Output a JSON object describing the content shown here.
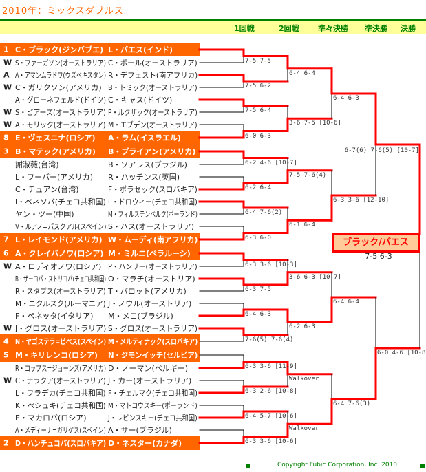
{
  "title": "2010年：ミックスダブルス",
  "rounds": [
    "1回戦",
    "2回戦",
    "準々決勝",
    "準決勝",
    "決勝"
  ],
  "colors": {
    "seed_band": "#FF6600",
    "winner_line": "#FF0000",
    "header_bar": "#FFFF99",
    "accent_green": "#008000",
    "champion_fill": "#FFCC99"
  },
  "entries": [
    {
      "mark": "1",
      "player1": "C・ブラック(ジンバブエ)",
      "player2": "L・パエス(インド)",
      "seeded": true
    },
    {
      "mark": "W",
      "player1": "S・ファーガソン(オーストラリア)",
      "player2": "C・ボール(オーストラリア)",
      "seeded": false
    },
    {
      "mark": "A",
      "player1": "A・アマンムラドワ(ウズベキスタン)",
      "player2": "R・デフェスト(南アフリカ)",
      "seeded": false
    },
    {
      "mark": "W",
      "player1": "C・ガリクソン(アメリカ)",
      "player2": "B・トミック(オーストラリア)",
      "seeded": false
    },
    {
      "mark": "",
      "player1": "A・グローネフェルド(ドイツ)",
      "player2": "C・キャス(ドイツ)",
      "seeded": false
    },
    {
      "mark": "W",
      "player1": "S・ピアーズ(オーストラリア)",
      "player2": "P・ルクザック(オーストラリア)",
      "seeded": false
    },
    {
      "mark": "W",
      "player1": "A・モリック(オーストラリア)",
      "player2": "M・エブデン(オーストラリア)",
      "seeded": false
    },
    {
      "mark": "8",
      "player1": "E・ヴェスニナ(ロシア)",
      "player2": "A・ラム(イスラエル)",
      "seeded": true
    },
    {
      "mark": "3",
      "player1": "B・マテック(アメリカ)",
      "player2": "B・ブライアン(アメリカ)",
      "seeded": true
    },
    {
      "mark": "",
      "player1": "謝淑薇(台湾)",
      "player2": "B・ソアレス(ブラジル)",
      "seeded": false
    },
    {
      "mark": "",
      "player1": "L・フーバー(アメリカ)",
      "player2": "R・ハッチンス(英国)",
      "seeded": false
    },
    {
      "mark": "",
      "player1": "C・チュアン(台湾)",
      "player2": "F・ポラセック(スロバキア)",
      "seeded": false
    },
    {
      "mark": "",
      "player1": "I・ベネソバ(チェコ共和国)",
      "player2": "L・ドロウィー(チェコ共和国)",
      "seeded": false
    },
    {
      "mark": "",
      "player1": "ヤン・ツー(中国)",
      "player2": "M・フィルステンベルク(ポーランド)",
      "seeded": false
    },
    {
      "mark": "",
      "player1": "V・ルアノ=パスクアル(スペイン)",
      "player2": "S・ハス(オーストラリア)",
      "seeded": false
    },
    {
      "mark": "7",
      "player1": "L・レイモンド(アメリカ)",
      "player2": "W・ムーディ(南アフリカ)",
      "seeded": true
    },
    {
      "mark": "6",
      "player1": "A・クレイバノワ(ロシア)",
      "player2": "M・ミルニ(ベラルーシ)",
      "seeded": true
    },
    {
      "mark": "W",
      "player1": "A・ロディオノワ(ロシア)",
      "player2": "P・ハンリー(オーストラリア)",
      "seeded": false
    },
    {
      "mark": "",
      "player1": "B・ザーロバ・ストリコバ(チェコ共和国)",
      "player2": "O・マラチ(オーストリア)",
      "seeded": false
    },
    {
      "mark": "",
      "player1": "R・スタブス(オーストラリア)",
      "player2": "T・パロット(アメリカ)",
      "seeded": false
    },
    {
      "mark": "",
      "player1": "M・ニクルスク(ルーマニア)",
      "player2": "J・ノウル(オーストリア)",
      "seeded": false
    },
    {
      "mark": "",
      "player1": "F・ペネッタ(イタリア)",
      "player2": "M・メロ(ブラジル)",
      "seeded": false
    },
    {
      "mark": "W",
      "player1": "J・グロス(オーストラリア)",
      "player2": "S・グロス(オーストラリア)",
      "seeded": false
    },
    {
      "mark": "4",
      "player1": "N・ヤゴステラ=ビベス(スペイン)",
      "player2": "M・メルティナック(スロバキア)",
      "seeded": true
    },
    {
      "mark": "5",
      "player1": "M・キリレンコ(ロシア)",
      "player2": "N・ジモンイッチ(セルビア)",
      "seeded": true
    },
    {
      "mark": "",
      "player1": "R・コップス=ジョーンズ(アメリカ)",
      "player2": "D・ノーマン(ベルギー)",
      "seeded": false
    },
    {
      "mark": "W",
      "player1": "C・テラクア(オーストラリア)",
      "player2": "J・カー(オーストラリア)",
      "seeded": false
    },
    {
      "mark": "",
      "player1": "L・フラデカ(チェコ共和国)",
      "player2": "F・チェルマク(チェコ共和国)",
      "seeded": false
    },
    {
      "mark": "",
      "player1": "K・ペシュキ(チェコ共和国)",
      "player2": "M・マトコウスキー(ポーランド)",
      "seeded": false
    },
    {
      "mark": "",
      "player1": "E・マカロバ(ロシア)",
      "player2": "J・レビンスキー(チェコ共和国)",
      "seeded": false
    },
    {
      "mark": "",
      "player1": "A・メディーナ=ガリゲス(スペイン)",
      "player2": "A・サー(ブラジル)",
      "seeded": false
    },
    {
      "mark": "2",
      "player1": "D・ハンチュコバ(スロバキア)",
      "player2": "D・ネスター(カナダ)",
      "seeded": true
    }
  ],
  "bracket": [
    {
      "winners": [
        0,
        0,
        0,
        1,
        0,
        1,
        0,
        1,
        0,
        0,
        1,
        0,
        1,
        1,
        1,
        1
      ],
      "scores": [
        "7-5 7-5",
        "7-5 6-2",
        "7-5 6-4",
        "6-0 6-3",
        "6-2 4-6 [10-7]",
        "6-2 6-4",
        "6-4 7-6(2)",
        "6-3 6-0",
        "6-3 3-6 [10-3]",
        "6-3 7-5",
        "6-4 6-3",
        "7-6(5) 7-6(4)",
        "6-3 3-6 [11-9]",
        "6-3 2-6 [10-8]",
        "6-4 5-7 [10-6]",
        "6-3 3-6 [10-6]"
      ]
    },
    {
      "winners": [
        0,
        1,
        1,
        1,
        1,
        0,
        0,
        1
      ],
      "scores": [
        "6-4 6-4",
        "3-6 7-5 [10-6]",
        "7-5 7-6(4)",
        "6-1 6-4",
        "3-6 6-3 [10-7]",
        "6-2 6-3",
        "Walkover",
        "Walkover"
      ]
    },
    {
      "winners": [
        0,
        1,
        1,
        1
      ],
      "scores": [
        "6-4 6-3",
        "6-3 3-6 [12-10]",
        "6-4 6-4",
        "6-4 7-6(3)"
      ]
    },
    {
      "winners": [
        0,
        1
      ],
      "scores": [
        "6-7(6) 7-6(5) [10-7]",
        "6-0 4-6 [10-8]"
      ]
    }
  ],
  "champion": {
    "name": "ブラック/パエス",
    "score": "7-5 6-3"
  },
  "copyright": "Copyright Fubic Corporation, Inc. 2010"
}
